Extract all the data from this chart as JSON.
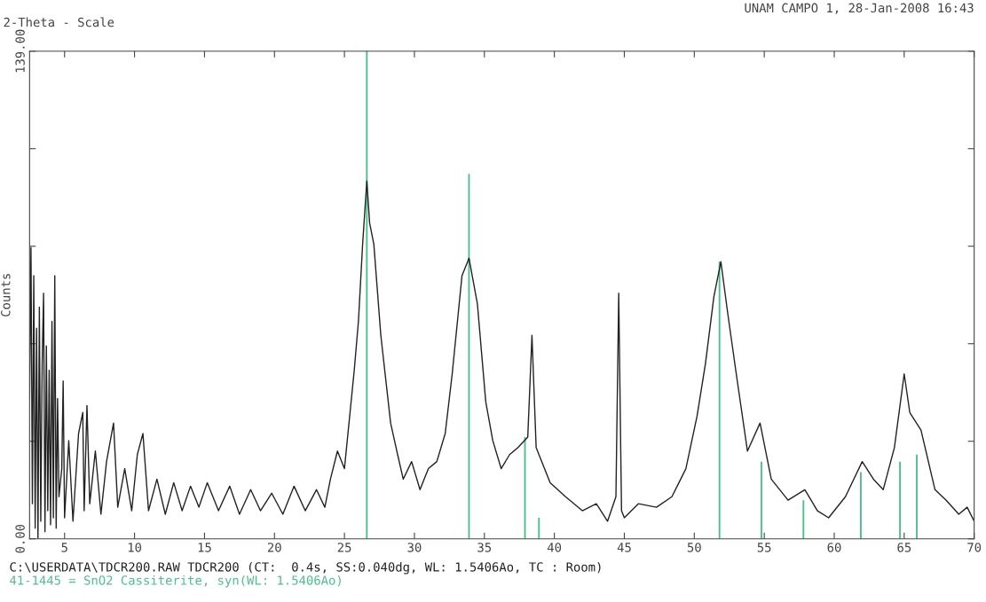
{
  "chart_data": {
    "type": "line",
    "title": "UNAM CAMPO 1, 28-Jan-2008 16:43",
    "xlabel": "2-Theta - Scale",
    "ylabel": "Counts",
    "xlim": [
      2.5,
      70
    ],
    "xticks": [
      5,
      10,
      15,
      20,
      25,
      30,
      35,
      40,
      45,
      50,
      55,
      60,
      65,
      70
    ],
    "ylim": [
      0,
      139
    ],
    "yticks": [
      {
        "value": 0,
        "label": "0.00"
      },
      {
        "value": 27.8,
        "label": null
      },
      {
        "value": 55.6,
        "label": null
      },
      {
        "value": 83.4,
        "label": null
      },
      {
        "value": 111.2,
        "label": null
      },
      {
        "value": 139,
        "label": "139.00"
      }
    ],
    "grid": false,
    "legend": "bottom left",
    "marker": "none",
    "line_style": "solid",
    "series": [
      {
        "name": "41-1445 = SnO2 Cassiterite, syn(WL: 1.5406Ao)",
        "type": "bar",
        "color": "#4cc08a",
        "x": [
          26.6,
          33.9,
          37.9,
          38.9,
          51.8,
          54.8,
          57.8,
          61.9,
          64.7,
          65.9
        ],
        "values": [
          139,
          104,
          29,
          6,
          79,
          22,
          11,
          19,
          22,
          24
        ]
      },
      {
        "name": "C:\\USERDATA\\TDCR200.RAW TDCR200 (CT:  0.4s, SS:0.040dg, WL: 1.5406Ao, TC : Room)",
        "color": "#222222",
        "x": [
          2.5,
          2.6,
          2.7,
          2.8,
          2.9,
          3.0,
          3.1,
          3.2,
          3.3,
          3.4,
          3.5,
          3.6,
          3.7,
          3.8,
          3.9,
          4.0,
          4.1,
          4.2,
          4.3,
          4.4,
          4.5,
          4.6,
          4.8,
          4.9,
          5.0,
          5.3,
          5.6,
          6.0,
          6.3,
          6.4,
          6.6,
          6.8,
          7.2,
          7.6,
          8.0,
          8.5,
          8.8,
          9.3,
          9.8,
          10.2,
          10.6,
          11.0,
          11.6,
          12.2,
          12.8,
          13.4,
          14.0,
          14.6,
          15.2,
          16.0,
          16.8,
          17.5,
          18.3,
          19.0,
          19.8,
          20.6,
          21.4,
          22.2,
          23.0,
          23.6,
          24.0,
          24.5,
          25.0,
          25.7,
          26.0,
          26.3,
          26.6,
          26.8,
          27.1,
          27.6,
          28.3,
          28.8,
          29.2,
          29.8,
          30.4,
          31.0,
          31.6,
          32.2,
          32.7,
          33.4,
          33.9,
          34.5,
          35.1,
          35.6,
          36.2,
          36.8,
          37.4,
          38.1,
          38.4,
          38.7,
          39.7,
          40.8,
          42.0,
          43.0,
          43.8,
          44.4,
          44.6,
          44.8,
          45.0,
          46.0,
          47.3,
          48.4,
          49.4,
          50.2,
          50.8,
          51.4,
          51.9,
          52.4,
          53.0,
          53.8,
          54.7,
          55.5,
          56.7,
          57.9,
          58.8,
          59.6,
          60.8,
          62.0,
          62.8,
          63.5,
          64.3,
          65.0,
          65.4,
          66.2,
          67.2,
          68.0,
          68.9,
          69.5,
          70.0
        ],
        "values": [
          40,
          83,
          10,
          75,
          3,
          60,
          0,
          66,
          5,
          50,
          70,
          2,
          55,
          8,
          48,
          4,
          62,
          6,
          75,
          3,
          40,
          12,
          20,
          45,
          6,
          28,
          5,
          30,
          36,
          8,
          38,
          10,
          25,
          7,
          22,
          33,
          9,
          20,
          8,
          24,
          30,
          8,
          17,
          7,
          16,
          8,
          15,
          9,
          16,
          8,
          15,
          7,
          14,
          8,
          13,
          7,
          15,
          8,
          14,
          9,
          17,
          25,
          20,
          48,
          62,
          84,
          102,
          90,
          84,
          58,
          33,
          24,
          17,
          22,
          14,
          20,
          22,
          30,
          47,
          75,
          80,
          67,
          39,
          28,
          20,
          24,
          26,
          29,
          58,
          26,
          16,
          12,
          8,
          10,
          5,
          12,
          70,
          8,
          6,
          10,
          9,
          12,
          20,
          35,
          50,
          69,
          79,
          64,
          47,
          25,
          33,
          17,
          11,
          14,
          8,
          6,
          12,
          22,
          17,
          14,
          26,
          47,
          36,
          31,
          14,
          11,
          7,
          9,
          5
        ]
      }
    ]
  }
}
